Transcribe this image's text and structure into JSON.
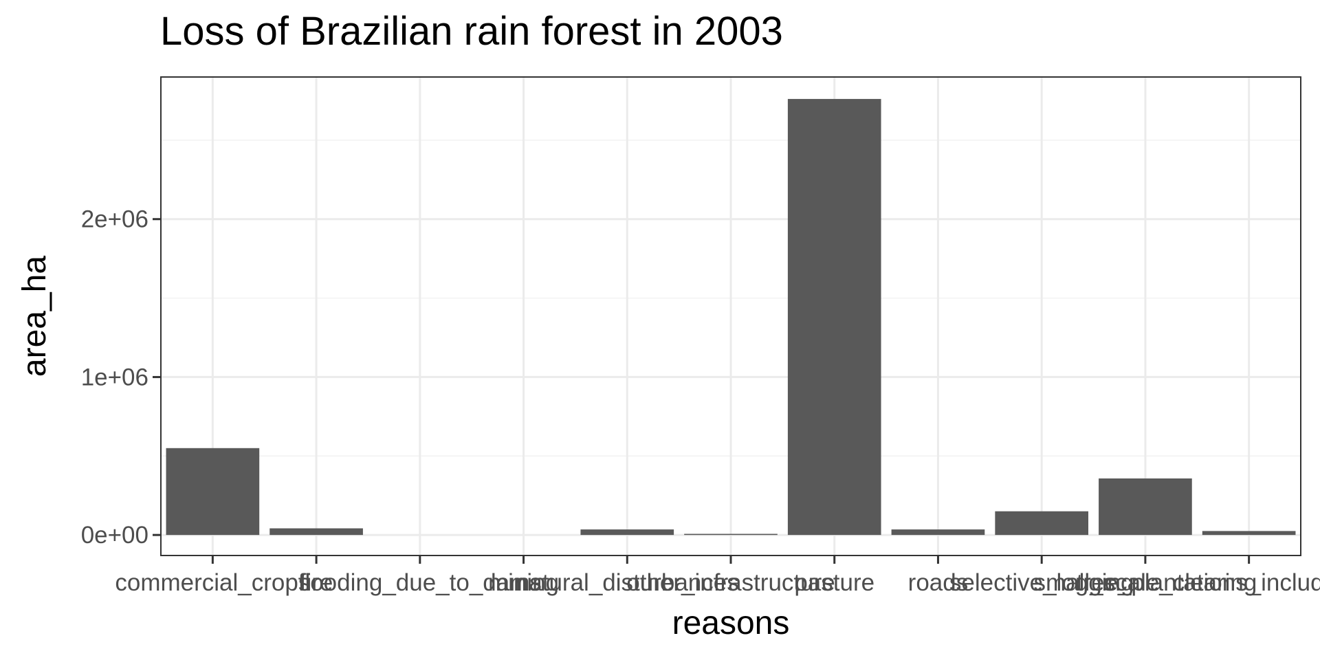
{
  "chart_data": {
    "type": "bar",
    "title": "Loss of Brazilian rain forest in 2003",
    "xlabel": "reasons",
    "ylabel": "area_ha",
    "categories": [
      "commercial_crops",
      "fire",
      "flooding_due_to_dams",
      "mining",
      "natural_disturbances",
      "other_infrastructure",
      "pasture",
      "roads",
      "selective_logging",
      "small_scale_clearing",
      "tree_plantations_including_palm"
    ],
    "values": [
      550000,
      42000,
      0,
      0,
      35000,
      7000,
      2761000,
      35000,
      150000,
      358000,
      25000
    ],
    "ylim": [
      -130000,
      2900000
    ],
    "yticks": [
      0,
      1000000,
      2000000
    ],
    "ytick_labels": [
      "0e+00",
      "1e+06",
      "2e+06"
    ],
    "grid": true,
    "colors": {
      "bar": "#595959",
      "panel_border": "#333333",
      "grid_major": "#ebebeb",
      "grid_minor": "#f2f2f2",
      "tick": "#333333"
    }
  }
}
